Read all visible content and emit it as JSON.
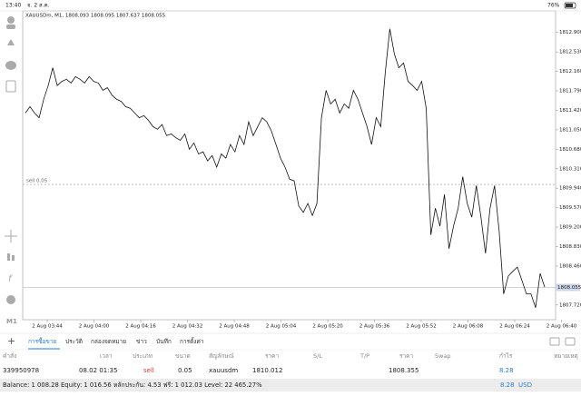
{
  "status_bar": {
    "time": "13:40",
    "date": "จ. 2 ส.ค.",
    "battery": "76%"
  },
  "chart": {
    "header": "XAUUSDm, M1, 1808.093 1808.095 1807.637 1808.055",
    "ylim": [
      1807.44,
      1813.31
    ],
    "yticks": [
      {
        "value": 1812.9,
        "label": "1812.900"
      },
      {
        "value": 1812.53,
        "label": "1812.530"
      },
      {
        "value": 1812.16,
        "label": "1812.160"
      },
      {
        "value": 1811.79,
        "label": "1811.790"
      },
      {
        "value": 1811.42,
        "label": "1811.420"
      },
      {
        "value": 1811.05,
        "label": "1811.050"
      },
      {
        "value": 1810.68,
        "label": "1810.680"
      },
      {
        "value": 1810.31,
        "label": "1810.310"
      },
      {
        "value": 1809.94,
        "label": "1809.940"
      },
      {
        "value": 1809.57,
        "label": "1809.570"
      },
      {
        "value": 1809.2,
        "label": "1809.200"
      },
      {
        "value": 1808.83,
        "label": "1808.830"
      },
      {
        "value": 1808.46,
        "label": "1808.460"
      },
      {
        "value": 1807.72,
        "label": "1807.720"
      }
    ],
    "x_labels": [
      "2 Aug 03:44",
      "2 Aug 04:00",
      "2 Aug 04:16",
      "2 Aug 04:32",
      "2 Aug 04:48",
      "2 Aug 05:04",
      "2 Aug 05:20",
      "2 Aug 05:36",
      "2 Aug 05:52",
      "2 Aug 06:08",
      "2 Aug 06:24",
      "2 Aug 06:40"
    ],
    "values": [
      1811.37,
      1811.49,
      1811.37,
      1811.28,
      1811.63,
      1811.89,
      1812.23,
      1811.89,
      1811.97,
      1812.01,
      1811.94,
      1812.06,
      1812.01,
      1811.94,
      1812.06,
      1811.97,
      1811.94,
      1811.8,
      1811.85,
      1811.71,
      1811.63,
      1811.59,
      1811.49,
      1811.46,
      1811.37,
      1811.28,
      1811.32,
      1811.23,
      1811.11,
      1811.06,
      1811.15,
      1810.94,
      1810.97,
      1810.9,
      1810.85,
      1810.97,
      1810.68,
      1810.8,
      1810.59,
      1810.63,
      1810.46,
      1810.56,
      1810.34,
      1810.59,
      1810.51,
      1810.77,
      1810.63,
      1810.94,
      1810.77,
      1811.2,
      1810.94,
      1811.11,
      1811.28,
      1811.2,
      1811.03,
      1810.77,
      1810.51,
      1810.34,
      1810.11,
      1810.08,
      1809.6,
      1809.48,
      1809.65,
      1809.42,
      1809.65,
      1811.28,
      1811.8,
      1811.54,
      1811.63,
      1811.37,
      1811.54,
      1811.46,
      1811.8,
      1811.63,
      1811.37,
      1811.11,
      1810.77,
      1811.28,
      1811.11,
      1812.14,
      1812.97,
      1812.49,
      1812.23,
      1812.32,
      1811.97,
      1811.89,
      1811.8,
      1811.97,
      1811.46,
      1809.05,
      1809.56,
      1809.22,
      1809.82,
      1808.79,
      1809.22,
      1809.56,
      1810.16,
      1809.65,
      1809.39,
      1809.99,
      1809.39,
      1808.7,
      1809.56,
      1809.99,
      1809.13,
      1807.93,
      1808.27,
      1808.36,
      1808.44,
      1808.19,
      1807.93,
      1807.93,
      1807.67,
      1808.32,
      1808.06
    ],
    "order_line": {
      "label": "sell 0.05",
      "value": 1810.012
    },
    "current_price": 1808.055
  },
  "left_toolbar": {
    "timeframe": "M1"
  },
  "tabs": [
    "การซื้อขาย",
    "ประวัติ",
    "กล่องจดหมาย",
    "ข่าว",
    "บันทึก",
    "การตั้งค่า"
  ],
  "table": {
    "headers": [
      "คำสั่ง",
      "เวลา",
      "ประเภท",
      "ขนาด",
      "สัญลักษณ์",
      "ราคา",
      "S/L",
      "T/P",
      "ราคา",
      "Swap",
      "กำไร",
      "หมายเหตุ"
    ],
    "rows": [
      {
        "order": "339950978",
        "time": "08.02 01:35",
        "type": "sell",
        "size": "0.05",
        "symbol": "xauusdm",
        "open_price": "1810.012",
        "price": "1808.355",
        "profit": "8.28"
      }
    ]
  },
  "summary": {
    "text": "Balance: 1 008.28 Equity: 1 016.56 หลักประกัน: 4.53 ฟรี: 1 012.03 Level: 22 465.27%",
    "total": "8.28",
    "currency": "USD"
  }
}
